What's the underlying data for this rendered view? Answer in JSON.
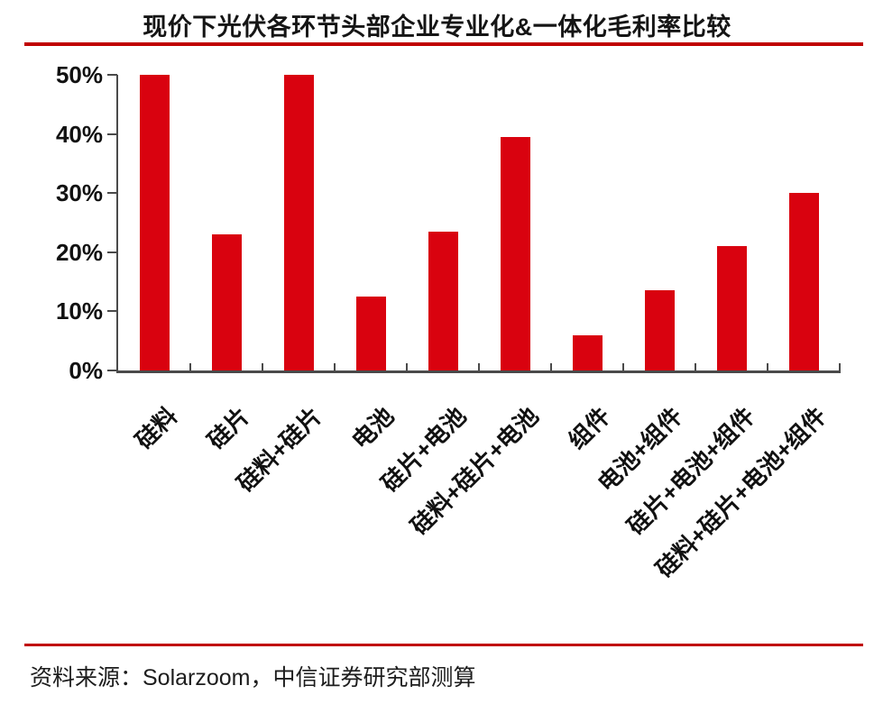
{
  "chart_data": {
    "type": "bar",
    "title": "现价下光伏各环节头部企业专业化&一体化毛利率比较",
    "categories": [
      "硅料",
      "硅片",
      "硅料+硅片",
      "电池",
      "硅片+电池",
      "硅料+硅片+电池",
      "组件",
      "电池+组件",
      "硅片+电池+组件",
      "硅料+硅片+电池+组件"
    ],
    "values": [
      50,
      23,
      50,
      12.5,
      23.5,
      39.5,
      6,
      13.5,
      21,
      30
    ],
    "xlabel": "",
    "ylabel": "",
    "ylim": [
      0,
      50
    ],
    "y_ticks": [
      "0%",
      "10%",
      "20%",
      "30%",
      "40%",
      "50%"
    ],
    "grid": false,
    "legend": null,
    "bar_color": "#d9020f"
  },
  "footer": {
    "source": "资料来源：Solarzoom，中信证券研究部测算"
  },
  "colors": {
    "bar": "#d9020f",
    "rule": "#c00000",
    "axis": "#4a4a4a"
  }
}
